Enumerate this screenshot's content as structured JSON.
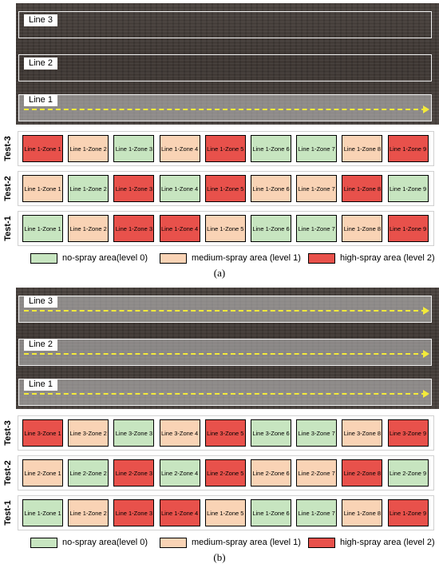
{
  "colors": {
    "level0": "#c7e5c0",
    "level1": "#f9d3b5",
    "level2": "#e8514b",
    "arrow": "#f3ea3a"
  },
  "panels": [
    {
      "lines": [
        {
          "label": "Line 3",
          "sprayed": false
        },
        {
          "label": "Line 2",
          "sprayed": false
        },
        {
          "label": "Line 1",
          "sprayed": true
        }
      ],
      "tests": [
        {
          "label": "Test-3",
          "zones": [
            {
              "label": "Line 1-Zone 1",
              "level": 2
            },
            {
              "label": "Line 1-Zone 2",
              "level": 1
            },
            {
              "label": "Line 1-Zone 3",
              "level": 0
            },
            {
              "label": "Line 1-Zone 4",
              "level": 1
            },
            {
              "label": "Line 1-Zone 5",
              "level": 2
            },
            {
              "label": "Line 1-Zone 6",
              "level": 0
            },
            {
              "label": "Line 1-Zone 7",
              "level": 0
            },
            {
              "label": "Line 1-Zone 8",
              "level": 1
            },
            {
              "label": "Line 1-Zone 9",
              "level": 2
            }
          ]
        },
        {
          "label": "Test-2",
          "zones": [
            {
              "label": "Line 1-Zone 1",
              "level": 1
            },
            {
              "label": "Line 1-Zone 2",
              "level": 0
            },
            {
              "label": "Line 1-Zone 3",
              "level": 2
            },
            {
              "label": "Line 1-Zone 4",
              "level": 0
            },
            {
              "label": "Line 1-Zone 5",
              "level": 2
            },
            {
              "label": "Line 1-Zone 6",
              "level": 1
            },
            {
              "label": "Line 1-Zone 7",
              "level": 1
            },
            {
              "label": "Line 1-Zone 8",
              "level": 2
            },
            {
              "label": "Line 1-Zone 9",
              "level": 0
            }
          ]
        },
        {
          "label": "Test-1",
          "zones": [
            {
              "label": "Line 1-Zone 1",
              "level": 0
            },
            {
              "label": "Line 1-Zone 2",
              "level": 1
            },
            {
              "label": "Line 1-Zone 3",
              "level": 2
            },
            {
              "label": "Line 1-Zone 4",
              "level": 2
            },
            {
              "label": "Line 1-Zone 5",
              "level": 1
            },
            {
              "label": "Line 1-Zone 6",
              "level": 0
            },
            {
              "label": "Line 1-Zone 7",
              "level": 0
            },
            {
              "label": "Line 1-Zone 8",
              "level": 1
            },
            {
              "label": "Line 1-Zone 9",
              "level": 2
            }
          ]
        }
      ],
      "legend": [
        "no-spray area(level 0)",
        "medium-spray area (level 1)",
        "high-spray area (level 2)"
      ],
      "caption": "(a)"
    },
    {
      "lines": [
        {
          "label": "Line 3",
          "sprayed": true
        },
        {
          "label": "Line 2",
          "sprayed": true
        },
        {
          "label": "Line 1",
          "sprayed": true
        }
      ],
      "tests": [
        {
          "label": "Test-3",
          "zones": [
            {
              "label": "Line 3-Zone 1",
              "level": 2
            },
            {
              "label": "Line 3-Zone 2",
              "level": 1
            },
            {
              "label": "Line 3-Zone 3",
              "level": 0
            },
            {
              "label": "Line 3-Zone 4",
              "level": 1
            },
            {
              "label": "Line 3-Zone 5",
              "level": 2
            },
            {
              "label": "Line 3-Zone 6",
              "level": 0
            },
            {
              "label": "Line 3-Zone 7",
              "level": 0
            },
            {
              "label": "Line 3-Zone 8",
              "level": 1
            },
            {
              "label": "Line 3-Zone 9",
              "level": 2
            }
          ]
        },
        {
          "label": "Test-2",
          "zones": [
            {
              "label": "Line 2-Zone 1",
              "level": 1
            },
            {
              "label": "Line 2-Zone 2",
              "level": 0
            },
            {
              "label": "Line 2-Zone 3",
              "level": 2
            },
            {
              "label": "Line 2-Zone 4",
              "level": 0
            },
            {
              "label": "Line 2-Zone 5",
              "level": 2
            },
            {
              "label": "Line 2-Zone 6",
              "level": 1
            },
            {
              "label": "Line 2-Zone 7",
              "level": 1
            },
            {
              "label": "Line 2-Zone 8",
              "level": 2
            },
            {
              "label": "Line 2-Zone 9",
              "level": 0
            }
          ]
        },
        {
          "label": "Test-1",
          "zones": [
            {
              "label": "Line 1-Zone 1",
              "level": 0
            },
            {
              "label": "Line 1-Zone 2",
              "level": 1
            },
            {
              "label": "Line 1-Zone 3",
              "level": 2
            },
            {
              "label": "Line 1-Zone 4",
              "level": 2
            },
            {
              "label": "Line 1-Zone 5",
              "level": 1
            },
            {
              "label": "Line 1-Zone 6",
              "level": 0
            },
            {
              "label": "Line 1-Zone 7",
              "level": 0
            },
            {
              "label": "Line 1-Zone 8",
              "level": 1
            },
            {
              "label": "Line 1-Zone 9",
              "level": 2
            }
          ]
        }
      ],
      "legend": [
        "no-spray area(level 0)",
        "medium-spray area (level 1)",
        "high-spray area (level 2)"
      ],
      "caption": "(b)"
    }
  ]
}
